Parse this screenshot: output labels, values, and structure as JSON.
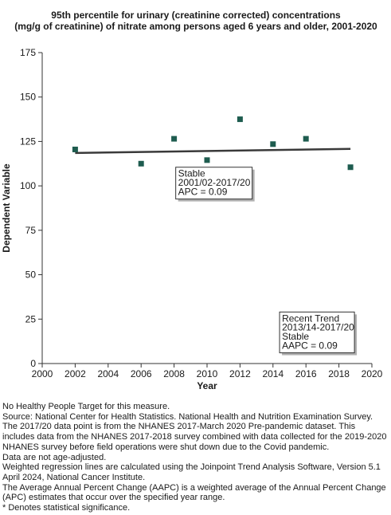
{
  "chart_data": {
    "type": "scatter",
    "title": [
      "95th percentile for urinary (creatinine corrected) concentrations",
      "(mg/g of creatinine) of nitrate among  persons aged 6 years and older, 2001-2020"
    ],
    "xlabel": "Year",
    "ylabel": "Dependent Variable",
    "xlim": [
      2000,
      2020
    ],
    "ylim": [
      0,
      175
    ],
    "xticks": [
      "2000",
      "2002",
      "2004",
      "2006",
      "2008",
      "2010",
      "2012",
      "2014",
      "2016",
      "2018",
      "2020"
    ],
    "yticks": [
      "0",
      "25",
      "50",
      "75",
      "100",
      "125",
      "150",
      "175"
    ],
    "points": [
      {
        "x": 2002,
        "y": 120.5
      },
      {
        "x": 2006,
        "y": 112.5
      },
      {
        "x": 2008,
        "y": 126.5
      },
      {
        "x": 2010,
        "y": 114.5
      },
      {
        "x": 2012,
        "y": 137.5
      },
      {
        "x": 2014,
        "y": 123.5
      },
      {
        "x": 2016,
        "y": 126.5
      },
      {
        "x": 2018.7,
        "y": 110.5
      }
    ],
    "trend_line": [
      {
        "x": 2002,
        "y": 118.5
      },
      {
        "x": 2018.7,
        "y": 120.8
      }
    ],
    "grid": false,
    "colors": {
      "points": "#1e5c4f",
      "trend": "#3a3a3a",
      "axis": "#333333"
    },
    "annotations": [
      {
        "lines": [
          "Stable",
          "2001/02-2017/20",
          "APC =  0.09"
        ]
      },
      {
        "lines": [
          "Recent Trend",
          "2013/14-2017/20",
          "Stable",
          "AAPC =  0.09"
        ]
      }
    ]
  },
  "footnotes": [
    "No Healthy People Target for this measure.",
    "Source: National Center for Health Statistics. National Health and Nutrition Examination Survey.",
    "The 2017/20 data point is from the NHANES 2017-March 2020 Pre-pandemic dataset. This includes data from the NHANES 2017-2018 survey combined with data collected for the 2019-2020 NHANES survey before field operations were shut down due to the Covid pandemic.",
    "Data are not age-adjusted.",
    "Weighted regression lines are calculated using the Joinpoint Trend Analysis Software, Version 5.1 April 2024, National Cancer Institute.",
    "The Average Annual Percent Change (AAPC) is a weighted average of the Annual Percent Change (APC) estimates that occur over the specified year range.",
    "* Denotes statistical significance."
  ]
}
